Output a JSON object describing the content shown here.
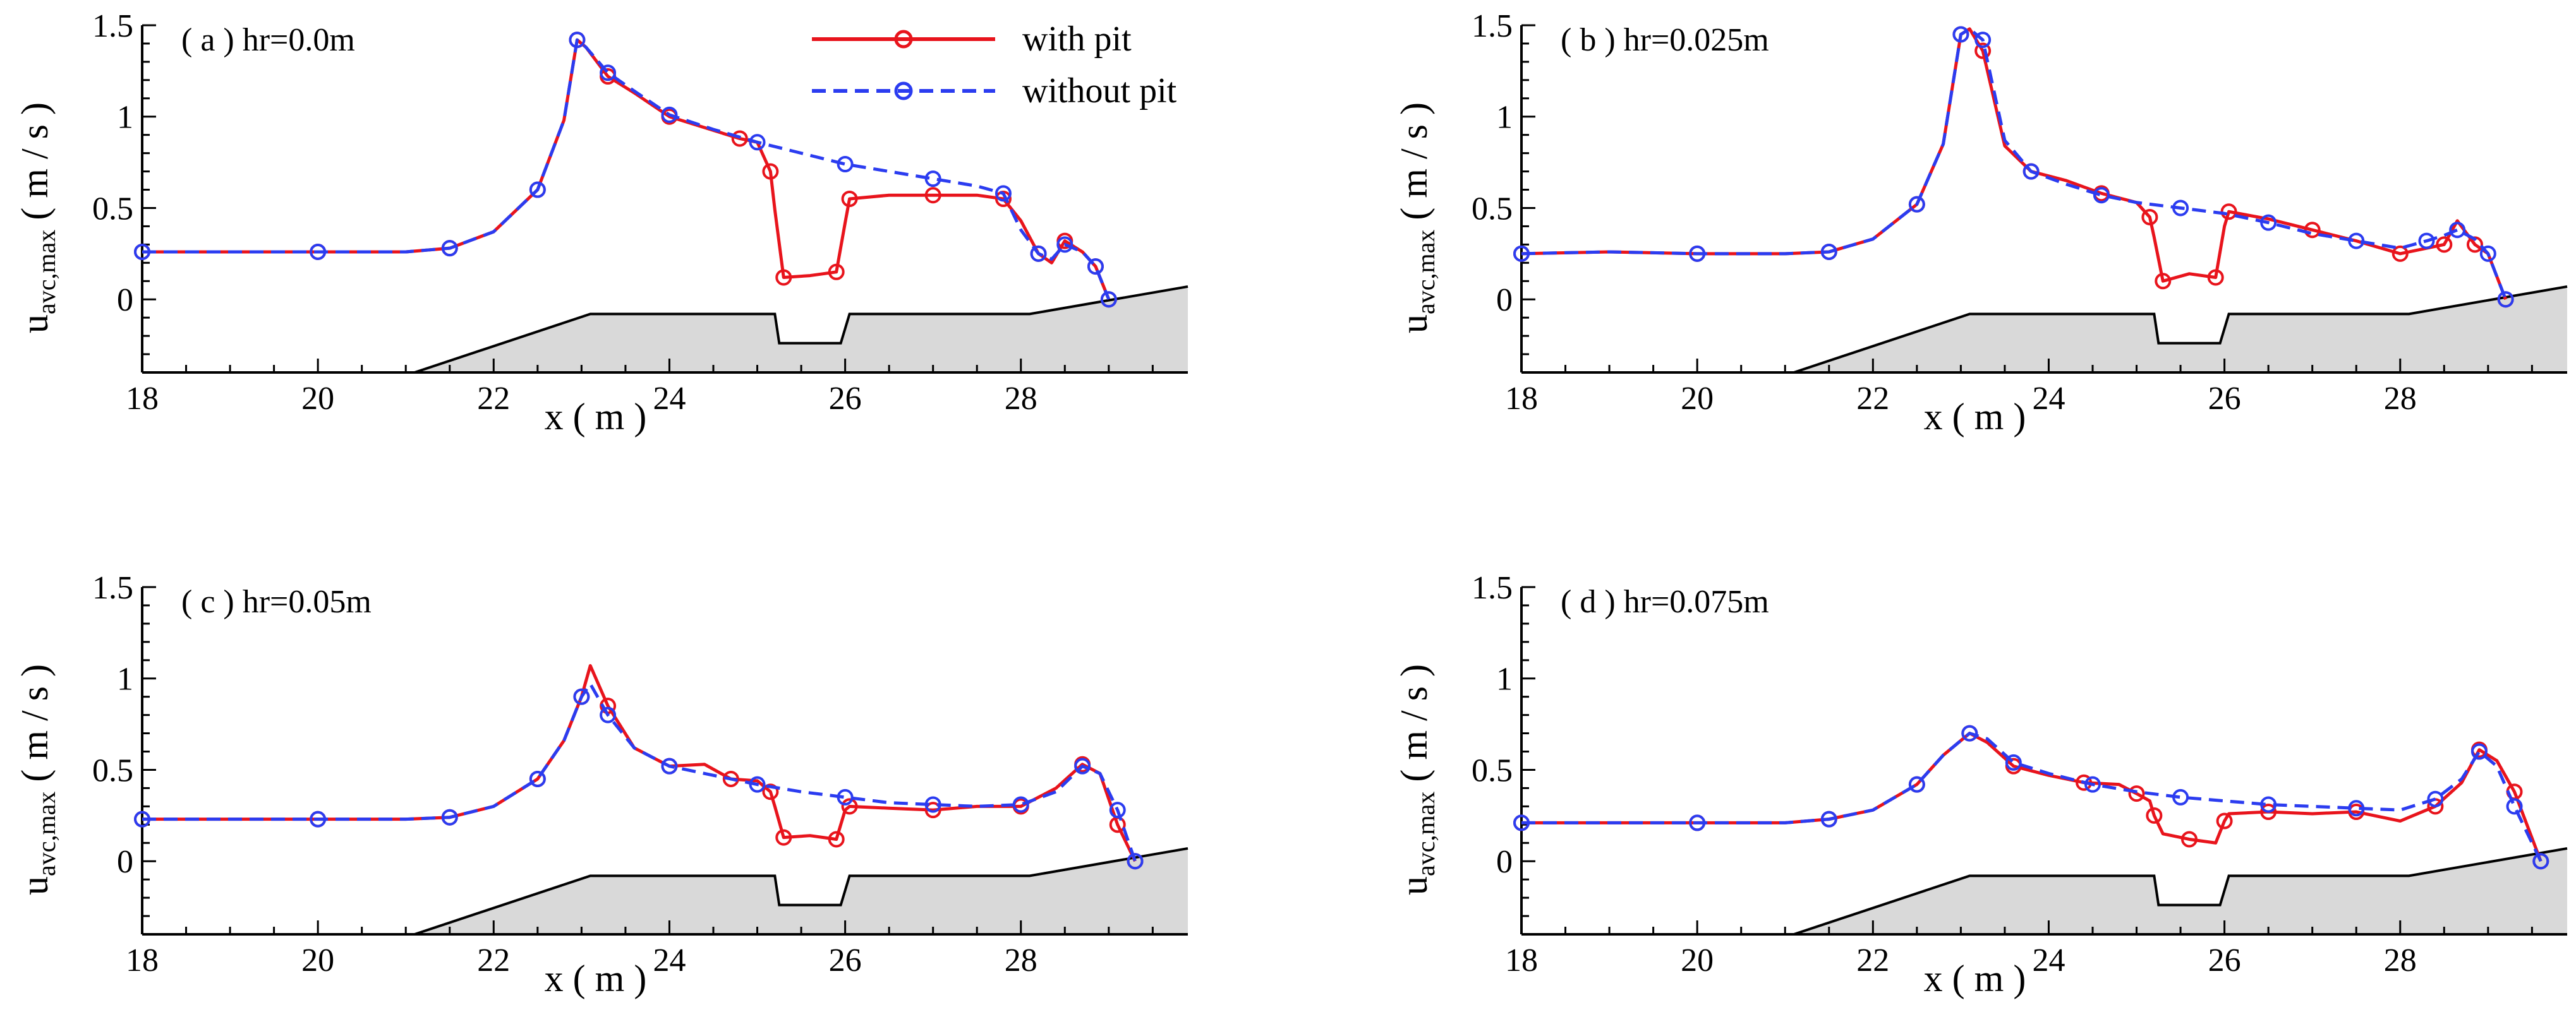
{
  "colors": {
    "with_pit": "#e8141c",
    "without_pit": "#2b3cf0",
    "bathymetry_fill": "#d9d9d9",
    "axis": "#000000"
  },
  "legend": {
    "with_pit": "with pit",
    "without_pit": "without pit"
  },
  "chart_data": [
    {
      "type": "line",
      "panel_label": "( a ) hr=0.0m",
      "xlabel": "x ( m )",
      "ylabel_main": "u",
      "ylabel_sub": "avc,max",
      "ylabel_unit": " ( m / s )",
      "xlim": [
        18,
        29.9
      ],
      "ylim": [
        -0.4,
        1.5
      ],
      "xticks": [
        "18",
        "20",
        "22",
        "24",
        "26",
        "28"
      ],
      "yticks": [
        "0",
        "0.5",
        "1",
        "1.5"
      ],
      "bathymetry": {
        "x": [
          21.1,
          23.1,
          25.2,
          25.25,
          25.95,
          26.05,
          28.1,
          29.9
        ],
        "y": [
          -0.4,
          -0.08,
          -0.08,
          -0.24,
          -0.24,
          -0.08,
          -0.08,
          0.07
        ]
      },
      "series": [
        {
          "name": "with pit",
          "x": [
            18,
            19,
            20,
            21,
            21.5,
            22,
            22.5,
            22.8,
            22.95,
            23.05,
            23.3,
            23.6,
            24,
            24.4,
            24.8,
            25.0,
            25.15,
            25.2,
            25.3,
            25.6,
            25.9,
            26.0,
            26.05,
            26.5,
            27.0,
            27.5,
            27.8,
            28.0,
            28.2,
            28.35,
            28.5,
            28.7,
            28.85,
            29.0
          ],
          "y": [
            0.26,
            0.26,
            0.26,
            0.26,
            0.28,
            0.37,
            0.6,
            0.98,
            1.42,
            1.38,
            1.22,
            1.13,
            1.0,
            0.94,
            0.88,
            0.86,
            0.7,
            0.49,
            0.12,
            0.13,
            0.15,
            0.42,
            0.55,
            0.57,
            0.57,
            0.57,
            0.55,
            0.43,
            0.25,
            0.2,
            0.32,
            0.26,
            0.18,
            0.0
          ]
        },
        {
          "name": "without pit",
          "x": [
            18,
            19,
            20,
            21,
            21.5,
            22,
            22.5,
            22.8,
            22.95,
            23.05,
            23.3,
            23.6,
            24,
            24.5,
            25.0,
            25.5,
            26.0,
            26.5,
            27.0,
            27.5,
            27.8,
            28.0,
            28.2,
            28.35,
            28.5,
            28.7,
            28.85,
            29.0
          ],
          "y": [
            0.26,
            0.26,
            0.26,
            0.26,
            0.28,
            0.37,
            0.6,
            0.98,
            1.42,
            1.38,
            1.24,
            1.14,
            1.01,
            0.93,
            0.86,
            0.8,
            0.74,
            0.7,
            0.66,
            0.62,
            0.58,
            0.38,
            0.25,
            0.22,
            0.3,
            0.26,
            0.18,
            0.0
          ]
        }
      ]
    },
    {
      "type": "line",
      "panel_label": "( b ) hr=0.025m",
      "xlabel": "x ( m )",
      "ylabel_main": "u",
      "ylabel_sub": "avc,max",
      "ylabel_unit": " ( m / s )",
      "xlim": [
        18,
        29.9
      ],
      "ylim": [
        -0.4,
        1.5
      ],
      "xticks": [
        "18",
        "20",
        "22",
        "24",
        "26",
        "28"
      ],
      "yticks": [
        "0",
        "0.5",
        "1",
        "1.5"
      ],
      "bathymetry": {
        "x": [
          21.1,
          23.1,
          25.2,
          25.25,
          25.95,
          26.05,
          28.1,
          29.9
        ],
        "y": [
          -0.4,
          -0.08,
          -0.08,
          -0.24,
          -0.24,
          -0.08,
          -0.08,
          0.07
        ]
      },
      "series": [
        {
          "name": "with pit",
          "x": [
            18,
            19,
            20,
            21,
            21.5,
            22,
            22.5,
            22.8,
            23.0,
            23.1,
            23.25,
            23.5,
            23.8,
            24.2,
            24.6,
            25.0,
            25.15,
            25.2,
            25.3,
            25.6,
            25.9,
            26.0,
            26.05,
            26.5,
            27.0,
            27.5,
            28.0,
            28.3,
            28.5,
            28.65,
            28.85,
            29.0,
            29.2
          ],
          "y": [
            0.25,
            0.26,
            0.25,
            0.25,
            0.26,
            0.33,
            0.52,
            0.85,
            1.45,
            1.48,
            1.36,
            0.84,
            0.7,
            0.65,
            0.58,
            0.53,
            0.45,
            0.34,
            0.1,
            0.14,
            0.12,
            0.4,
            0.48,
            0.44,
            0.38,
            0.32,
            0.25,
            0.28,
            0.3,
            0.43,
            0.3,
            0.25,
            0.0
          ]
        },
        {
          "name": "without pit",
          "x": [
            18,
            19,
            20,
            21,
            21.5,
            22,
            22.5,
            22.8,
            23.0,
            23.1,
            23.25,
            23.5,
            23.8,
            24.2,
            24.6,
            25.0,
            25.5,
            26.0,
            26.5,
            27.0,
            27.5,
            28.0,
            28.3,
            28.5,
            28.65,
            28.85,
            29.0,
            29.2
          ],
          "y": [
            0.25,
            0.26,
            0.25,
            0.25,
            0.26,
            0.33,
            0.52,
            0.85,
            1.45,
            1.48,
            1.42,
            0.87,
            0.7,
            0.63,
            0.57,
            0.53,
            0.5,
            0.47,
            0.42,
            0.36,
            0.32,
            0.28,
            0.32,
            0.35,
            0.38,
            0.33,
            0.25,
            0.0
          ]
        }
      ]
    },
    {
      "type": "line",
      "panel_label": "( c ) hr=0.05m",
      "xlabel": "x ( m )",
      "ylabel_main": "u",
      "ylabel_sub": "avc,max",
      "ylabel_unit": " ( m / s )",
      "xlim": [
        18,
        29.9
      ],
      "ylim": [
        -0.4,
        1.5
      ],
      "xticks": [
        "18",
        "20",
        "22",
        "24",
        "26",
        "28"
      ],
      "yticks": [
        "0",
        "0.5",
        "1",
        "1.5"
      ],
      "bathymetry": {
        "x": [
          21.1,
          23.1,
          25.2,
          25.25,
          25.95,
          26.05,
          28.1,
          29.9
        ],
        "y": [
          -0.4,
          -0.08,
          -0.08,
          -0.24,
          -0.24,
          -0.08,
          -0.08,
          0.07
        ]
      },
      "series": [
        {
          "name": "with pit",
          "x": [
            18,
            19,
            20,
            21,
            21.5,
            22,
            22.5,
            22.8,
            23.0,
            23.1,
            23.3,
            23.6,
            24.0,
            24.4,
            24.7,
            25.0,
            25.15,
            25.2,
            25.3,
            25.6,
            25.9,
            26.0,
            26.05,
            26.5,
            27.0,
            27.5,
            28.0,
            28.4,
            28.7,
            28.9,
            29.1,
            29.3
          ],
          "y": [
            0.23,
            0.23,
            0.23,
            0.23,
            0.24,
            0.3,
            0.45,
            0.66,
            0.9,
            1.07,
            0.85,
            0.62,
            0.52,
            0.53,
            0.45,
            0.44,
            0.38,
            0.3,
            0.13,
            0.14,
            0.12,
            0.28,
            0.3,
            0.29,
            0.28,
            0.3,
            0.3,
            0.4,
            0.53,
            0.48,
            0.2,
            0.0
          ]
        },
        {
          "name": "without pit",
          "x": [
            18,
            19,
            20,
            21,
            21.5,
            22,
            22.5,
            22.8,
            23.0,
            23.1,
            23.3,
            23.6,
            24.0,
            24.5,
            25.0,
            25.5,
            26.0,
            26.5,
            27.0,
            27.5,
            28.0,
            28.4,
            28.7,
            28.9,
            29.1,
            29.3
          ],
          "y": [
            0.23,
            0.23,
            0.23,
            0.23,
            0.24,
            0.3,
            0.45,
            0.66,
            0.9,
            0.97,
            0.8,
            0.62,
            0.52,
            0.47,
            0.42,
            0.38,
            0.35,
            0.32,
            0.31,
            0.3,
            0.31,
            0.38,
            0.52,
            0.48,
            0.28,
            0.0
          ]
        }
      ]
    },
    {
      "type": "line",
      "panel_label": "( d ) hr=0.075m",
      "xlabel": "x ( m )",
      "ylabel_main": "u",
      "ylabel_sub": "avc,max",
      "ylabel_unit": " ( m / s )",
      "xlim": [
        18,
        29.9
      ],
      "ylim": [
        -0.4,
        1.5
      ],
      "xticks": [
        "18",
        "20",
        "22",
        "24",
        "26",
        "28"
      ],
      "yticks": [
        "0",
        "0.5",
        "1",
        "1.5"
      ],
      "bathymetry": {
        "x": [
          21.1,
          23.1,
          25.2,
          25.25,
          25.95,
          26.05,
          28.1,
          29.9
        ],
        "y": [
          -0.4,
          -0.08,
          -0.08,
          -0.24,
          -0.24,
          -0.08,
          -0.08,
          0.07
        ]
      },
      "series": [
        {
          "name": "with pit",
          "x": [
            18,
            19,
            20,
            21,
            21.5,
            22,
            22.5,
            22.8,
            23.1,
            23.3,
            23.6,
            24.0,
            24.4,
            24.8,
            25.0,
            25.15,
            25.2,
            25.3,
            25.6,
            25.9,
            26.0,
            26.05,
            26.5,
            27.0,
            27.5,
            28.0,
            28.4,
            28.7,
            28.9,
            29.1,
            29.3,
            29.6
          ],
          "y": [
            0.21,
            0.21,
            0.21,
            0.21,
            0.23,
            0.28,
            0.42,
            0.58,
            0.7,
            0.65,
            0.52,
            0.47,
            0.43,
            0.42,
            0.37,
            0.33,
            0.25,
            0.15,
            0.12,
            0.1,
            0.22,
            0.26,
            0.27,
            0.26,
            0.27,
            0.22,
            0.3,
            0.43,
            0.61,
            0.55,
            0.38,
            0.0
          ]
        },
        {
          "name": "without pit",
          "x": [
            18,
            19,
            20,
            21,
            21.5,
            22,
            22.5,
            22.8,
            23.1,
            23.3,
            23.6,
            24.0,
            24.5,
            25.0,
            25.5,
            26.0,
            26.5,
            27.0,
            27.5,
            28.0,
            28.4,
            28.7,
            28.9,
            29.1,
            29.3,
            29.6
          ],
          "y": [
            0.21,
            0.21,
            0.21,
            0.21,
            0.23,
            0.28,
            0.42,
            0.58,
            0.7,
            0.67,
            0.54,
            0.48,
            0.42,
            0.38,
            0.35,
            0.33,
            0.31,
            0.3,
            0.29,
            0.28,
            0.34,
            0.45,
            0.6,
            0.52,
            0.3,
            0.0
          ]
        }
      ]
    }
  ]
}
